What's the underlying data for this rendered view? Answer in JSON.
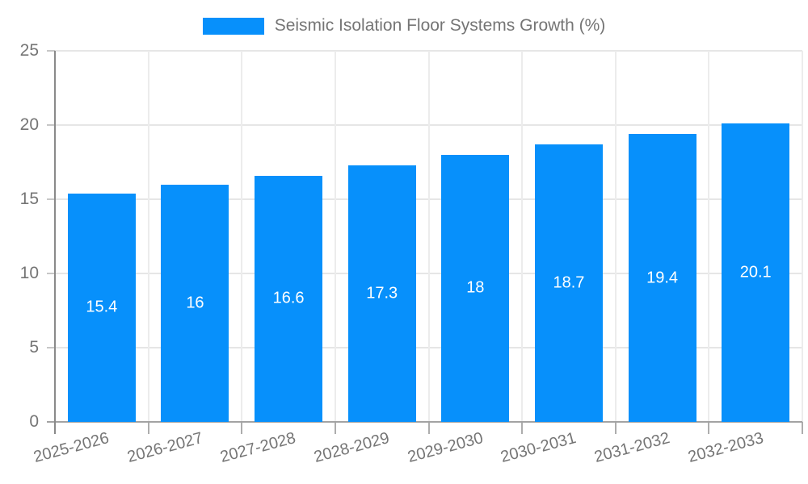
{
  "chart_data": {
    "type": "bar",
    "title": "",
    "xlabel": "",
    "ylabel": "",
    "legend": {
      "position": "top",
      "label": "Seismic Isolation Floor Systems Growth (%)"
    },
    "categories": [
      "2025-2026",
      "2026-2027",
      "2027-2028",
      "2028-2029",
      "2029-2030",
      "2030-2031",
      "2031-2032",
      "2032-2033"
    ],
    "series": [
      {
        "name": "Seismic Isolation Floor Systems Growth (%)",
        "values": [
          15.4,
          16,
          16.6,
          17.3,
          18,
          18.7,
          19.4,
          20.1
        ]
      }
    ],
    "value_labels": [
      "15.4",
      "16",
      "16.6",
      "17.3",
      "18",
      "18.7",
      "19.4",
      "20.1"
    ],
    "ylim": [
      0,
      25
    ],
    "yticks": [
      0,
      5,
      10,
      15,
      20,
      25
    ],
    "grid": true,
    "x_label_rotation_deg": -15,
    "colors": {
      "bar": "#0790fb",
      "value_label": "#ffffff",
      "axis_text": "#757575",
      "gridline": "#e6e6e6",
      "axis_line": "#8a8a8a"
    }
  }
}
